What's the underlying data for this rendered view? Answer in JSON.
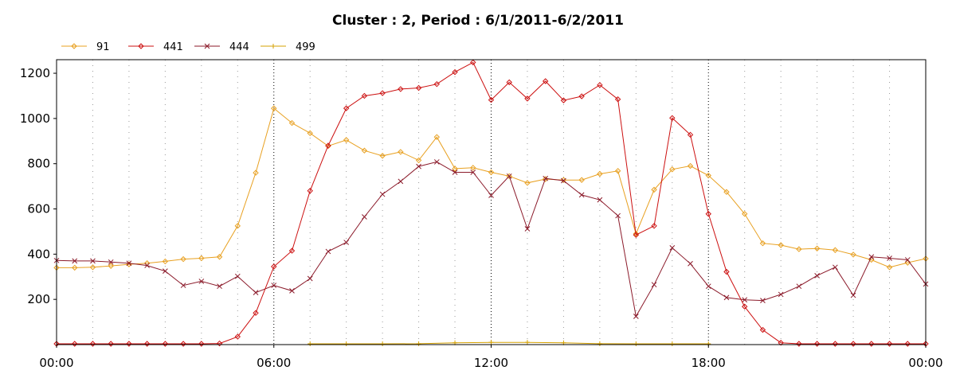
{
  "chart_data": {
    "type": "line",
    "title": "Cluster : 2, Period : 6/1/2011-6/2/2011",
    "xlabel": "",
    "ylabel": "",
    "xlim": [
      0,
      24
    ],
    "ylim": [
      0,
      1260
    ],
    "x_ticks": [
      "00:00",
      "06:00",
      "12:00",
      "18:00",
      "00:00"
    ],
    "y_ticks": [
      "200",
      "400",
      "600",
      "800",
      "1000",
      "1200"
    ],
    "grid": true,
    "legend_position": "top-left",
    "series": [
      {
        "name": "91",
        "color": "#e8a020",
        "marker": "diamond",
        "points": [
          [
            0,
            340
          ],
          [
            0.5,
            340
          ],
          [
            1,
            342
          ],
          [
            1.5,
            348
          ],
          [
            2,
            355
          ],
          [
            2.5,
            360
          ],
          [
            3,
            368
          ],
          [
            3.5,
            378
          ],
          [
            4,
            382
          ],
          [
            4.5,
            388
          ],
          [
            5,
            525
          ],
          [
            5.5,
            760
          ],
          [
            6,
            1045
          ],
          [
            6.5,
            980
          ],
          [
            7,
            935
          ],
          [
            7.5,
            878
          ],
          [
            8,
            905
          ],
          [
            8.5,
            858
          ],
          [
            9,
            835
          ],
          [
            9.5,
            852
          ],
          [
            10,
            815
          ],
          [
            10.5,
            918
          ],
          [
            11,
            778
          ],
          [
            11.5,
            782
          ],
          [
            12,
            762
          ],
          [
            12.5,
            745
          ],
          [
            13,
            715
          ],
          [
            13.5,
            732
          ],
          [
            14,
            728
          ],
          [
            14.5,
            728
          ],
          [
            15,
            755
          ],
          [
            15.5,
            768
          ],
          [
            16,
            490
          ],
          [
            16.5,
            685
          ],
          [
            17,
            775
          ],
          [
            17.5,
            790
          ],
          [
            18,
            748
          ],
          [
            18.5,
            675
          ],
          [
            19,
            578
          ],
          [
            19.5,
            448
          ],
          [
            20,
            440
          ],
          [
            20.5,
            422
          ],
          [
            21,
            425
          ],
          [
            21.5,
            418
          ],
          [
            22,
            398
          ],
          [
            22.5,
            375
          ],
          [
            23,
            342
          ],
          [
            23.5,
            362
          ],
          [
            24,
            380
          ]
        ]
      },
      {
        "name": "441",
        "color": "#cc1010",
        "marker": "diamond",
        "points": [
          [
            0,
            0
          ],
          [
            0.5,
            0
          ],
          [
            1,
            0
          ],
          [
            1.5,
            0
          ],
          [
            2,
            0
          ],
          [
            2.5,
            0
          ],
          [
            3,
            0
          ],
          [
            3.5,
            0
          ],
          [
            4,
            0
          ],
          [
            4.5,
            5
          ],
          [
            5,
            35
          ],
          [
            5.5,
            140
          ],
          [
            6,
            345
          ],
          [
            6.5,
            415
          ],
          [
            7,
            680
          ],
          [
            7.5,
            880
          ],
          [
            8,
            1045
          ],
          [
            8.5,
            1100
          ],
          [
            9,
            1112
          ],
          [
            9.5,
            1130
          ],
          [
            10,
            1135
          ],
          [
            10.5,
            1152
          ],
          [
            11,
            1205
          ],
          [
            11.5,
            1248
          ],
          [
            12,
            1082
          ],
          [
            12.5,
            1160
          ],
          [
            13,
            1088
          ],
          [
            13.5,
            1165
          ],
          [
            14,
            1080
          ],
          [
            14.5,
            1098
          ],
          [
            15,
            1148
          ],
          [
            15.5,
            1085
          ],
          [
            16,
            485
          ],
          [
            16.5,
            525
          ],
          [
            17,
            1002
          ],
          [
            17.5,
            928
          ],
          [
            18,
            578
          ],
          [
            18.5,
            322
          ],
          [
            19,
            168
          ],
          [
            19.5,
            65
          ],
          [
            20,
            8
          ],
          [
            20.5,
            2
          ],
          [
            21,
            0
          ],
          [
            21.5,
            0
          ],
          [
            22,
            0
          ],
          [
            22.5,
            0
          ],
          [
            23,
            0
          ],
          [
            23.5,
            0
          ],
          [
            24,
            0
          ]
        ]
      },
      {
        "name": "444",
        "color": "#8b1a2a",
        "marker": "x",
        "points": [
          [
            0,
            372
          ],
          [
            0.5,
            370
          ],
          [
            1,
            370
          ],
          [
            1.5,
            365
          ],
          [
            2,
            360
          ],
          [
            2.5,
            350
          ],
          [
            3,
            325
          ],
          [
            3.5,
            262
          ],
          [
            4,
            280
          ],
          [
            4.5,
            258
          ],
          [
            5,
            302
          ],
          [
            5.5,
            230
          ],
          [
            6,
            262
          ],
          [
            6.5,
            238
          ],
          [
            7,
            292
          ],
          [
            7.5,
            412
          ],
          [
            8,
            452
          ],
          [
            8.5,
            565
          ],
          [
            9,
            665
          ],
          [
            9.5,
            722
          ],
          [
            10,
            788
          ],
          [
            10.5,
            808
          ],
          [
            11,
            762
          ],
          [
            11.5,
            762
          ],
          [
            12,
            660
          ],
          [
            12.5,
            745
          ],
          [
            13,
            512
          ],
          [
            13.5,
            735
          ],
          [
            14,
            725
          ],
          [
            14.5,
            662
          ],
          [
            15,
            640
          ],
          [
            15.5,
            570
          ],
          [
            16,
            125
          ],
          [
            16.5,
            265
          ],
          [
            17,
            428
          ],
          [
            17.5,
            358
          ],
          [
            18,
            258
          ],
          [
            18.5,
            208
          ],
          [
            19,
            198
          ],
          [
            19.5,
            195
          ],
          [
            20,
            222
          ],
          [
            20.5,
            258
          ],
          [
            21,
            305
          ],
          [
            21.5,
            342
          ],
          [
            22,
            218
          ],
          [
            22.5,
            388
          ],
          [
            23,
            382
          ],
          [
            23.5,
            375
          ],
          [
            24,
            268
          ]
        ]
      },
      {
        "name": "499",
        "color": "#d4a000",
        "marker": "plus",
        "points": [
          [
            7,
            0
          ],
          [
            8,
            2
          ],
          [
            9,
            3
          ],
          [
            10,
            4
          ],
          [
            11,
            8
          ],
          [
            12,
            10
          ],
          [
            13,
            10
          ],
          [
            14,
            8
          ],
          [
            15,
            4
          ],
          [
            16,
            0
          ],
          [
            17,
            2
          ],
          [
            18,
            0
          ]
        ]
      }
    ]
  }
}
